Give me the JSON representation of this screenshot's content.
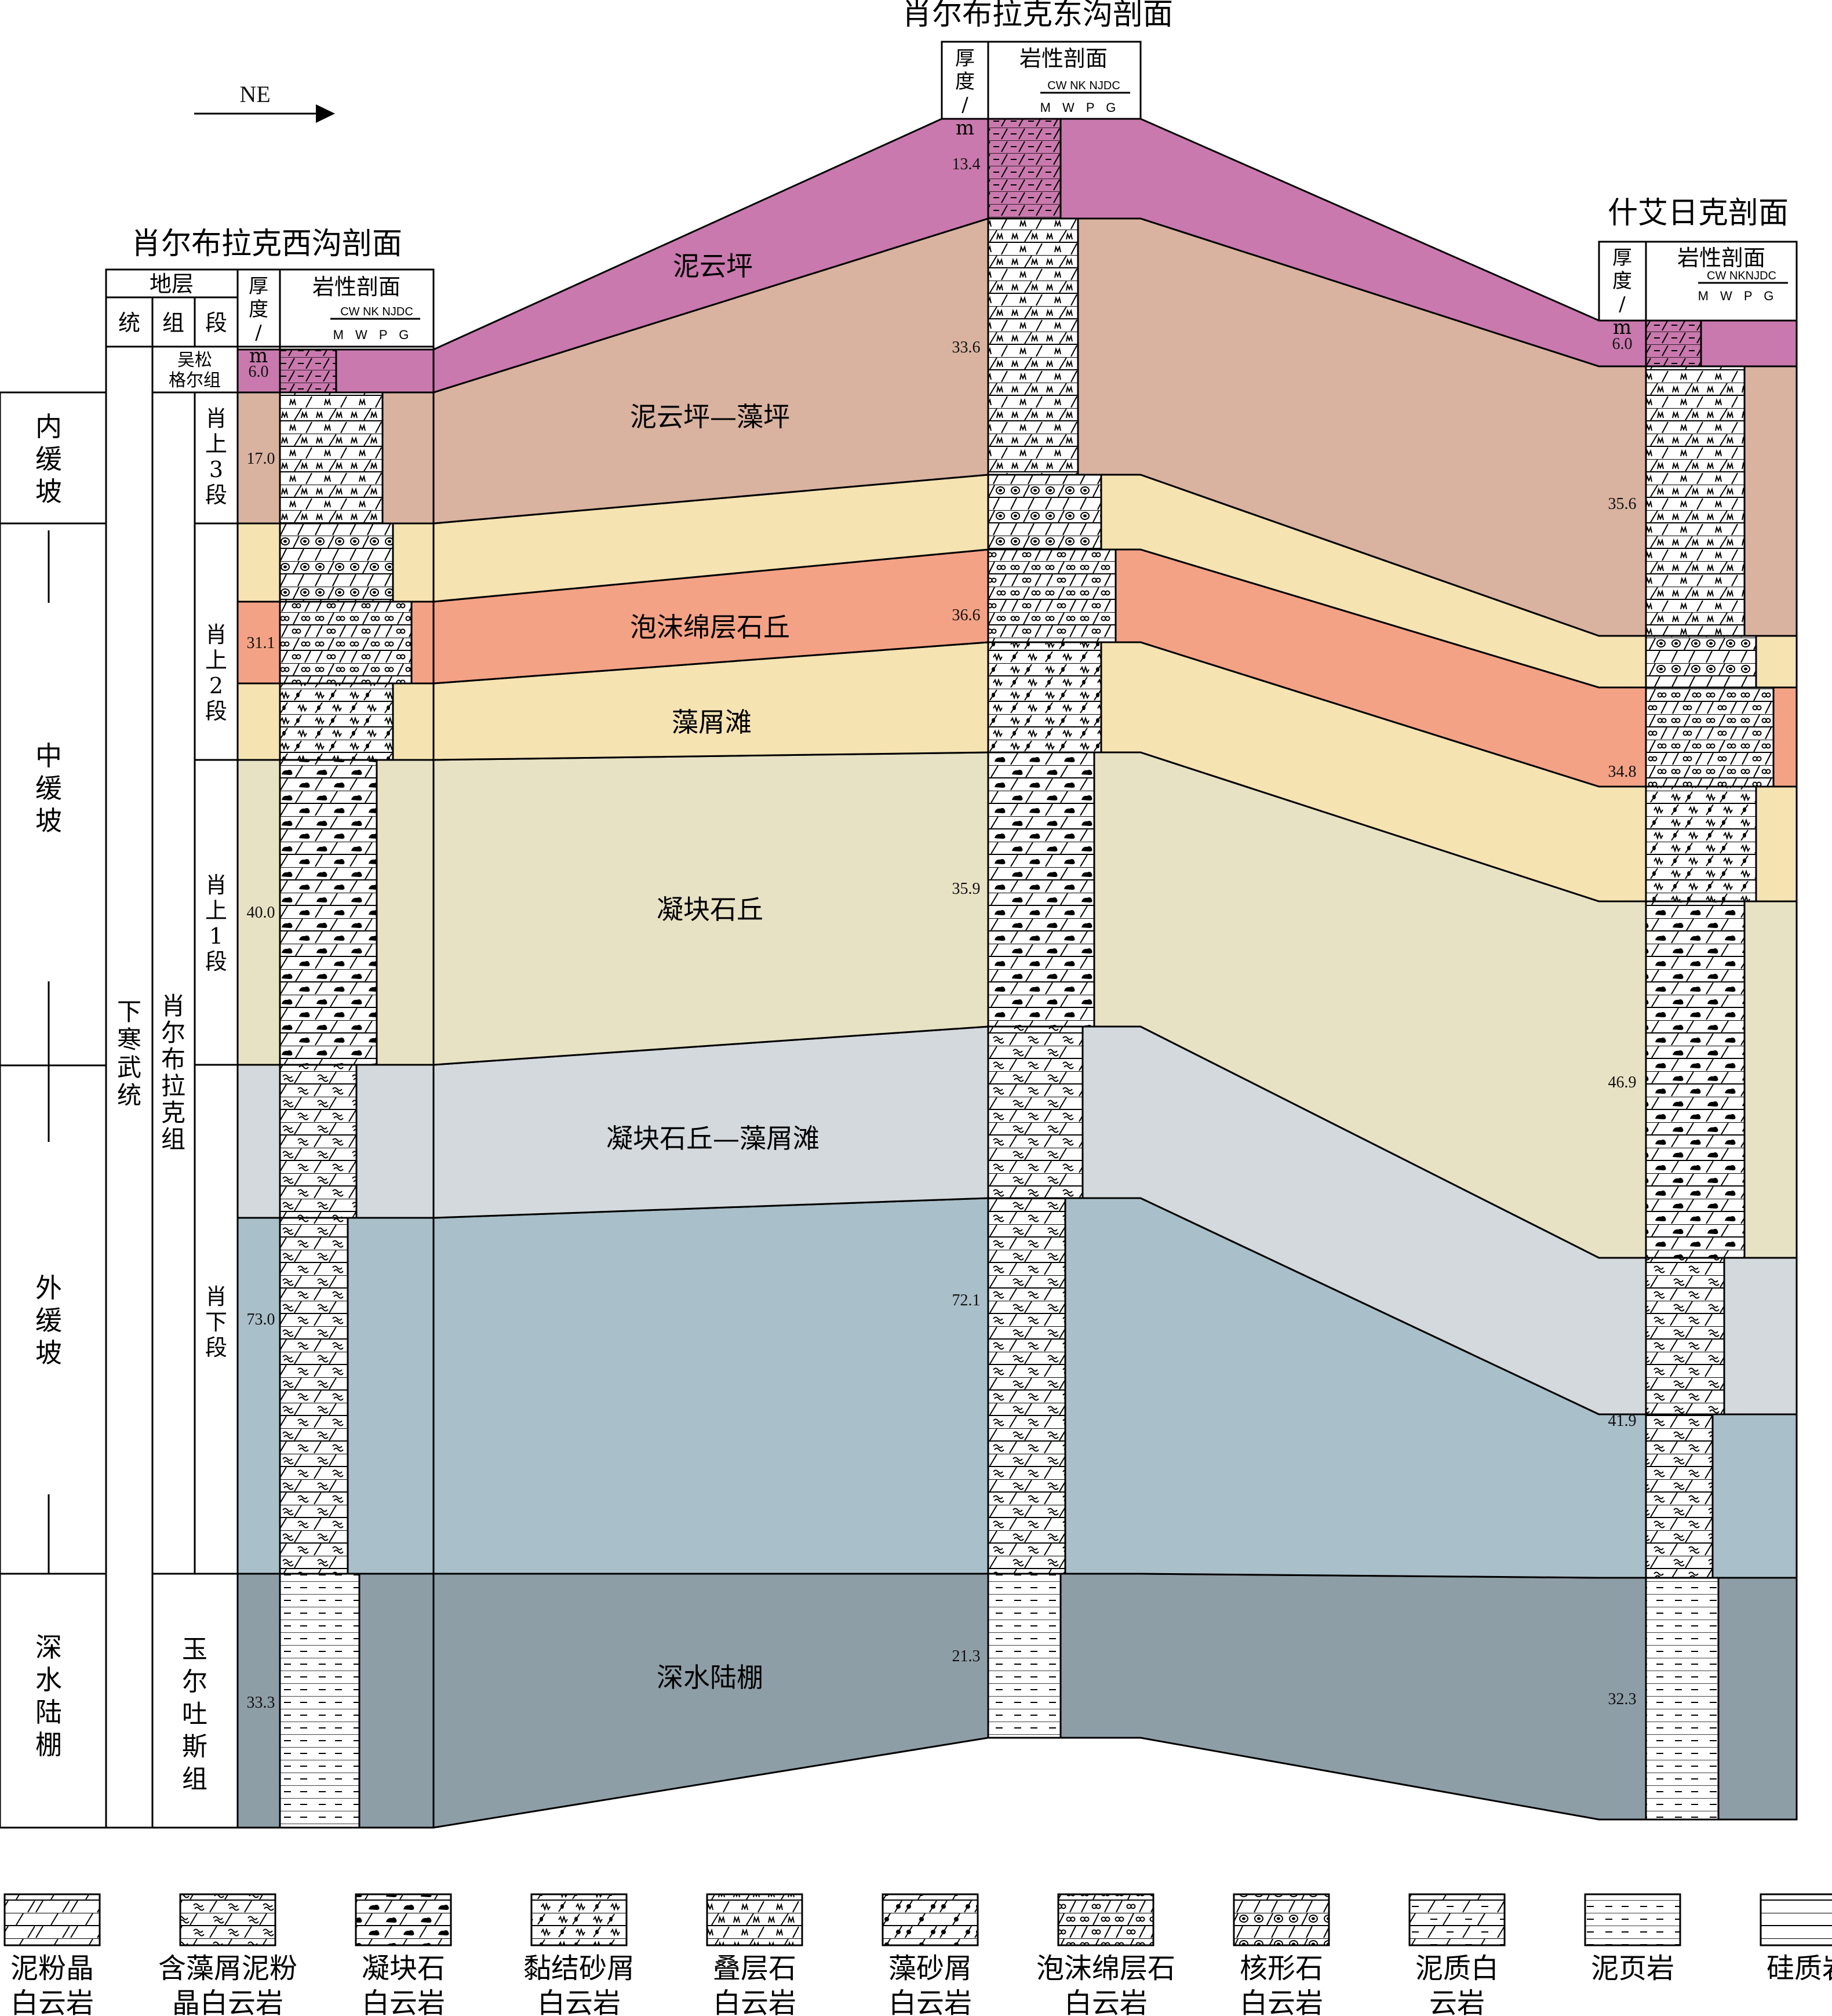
{
  "direction_label": "NE",
  "sections": {
    "west": {
      "title": "肖尔布拉克西沟剖面",
      "header_strata": "地层",
      "header_series": "统",
      "header_group": "组",
      "header_member": "段",
      "header_thickness": "厚度/m",
      "header_lith": "岩性剖面",
      "grain_top": "CW NK NJDC",
      "grain_bottom": "M W P G"
    },
    "east": {
      "title": "肖尔布拉克东沟剖面",
      "header_thickness": "厚度/m",
      "header_lith": "岩性剖面",
      "grain_top": "CW NK NJDC",
      "grain_bottom": "M W P G"
    },
    "shi": {
      "title": "什艾日克剖面",
      "header_thickness": "厚度/m",
      "header_lith": "岩性剖面",
      "grain_top": "CW NKNJDC",
      "grain_bottom": "M W P G"
    }
  },
  "ramp_zones": [
    "内缓坡",
    "中缓坡",
    "外缓坡",
    "深水陆棚"
  ],
  "strata": {
    "series": "下寒武统",
    "wusong": "吴松格尔组",
    "xiao_group": "肖尔布拉克组",
    "yuer_group": "玉尔吐斯组",
    "members": [
      "肖上3段",
      "肖上2段",
      "肖上1段",
      "肖下段"
    ]
  },
  "thickness": {
    "west": [
      "6.0",
      "17.0",
      "31.1",
      "40.0",
      "73.0",
      "33.3"
    ],
    "east": [
      "13.4",
      "33.6",
      "36.6",
      "35.9",
      "72.1",
      "21.3"
    ],
    "shi": [
      "6.0",
      "35.6",
      "34.8",
      "46.9",
      "41.9",
      "32.3"
    ]
  },
  "facies": {
    "niyunping": "泥云坪",
    "niyunping_zaoping": "泥云坪—藻坪",
    "paomo": "泡沫绵层石丘",
    "zaoxietan": "藻屑滩",
    "ningkuai": "凝块石丘",
    "ningkuai_zaoxie": "凝块石丘—藻屑滩",
    "shenshui": "深水陆棚"
  },
  "facies_colors": {
    "niyunping": "#c979ad",
    "niyunping_zaoping": "#d9b3a0",
    "tan": "#f6e3b2",
    "paomo": "#f4a285",
    "ningkuai": "#e8e2c4",
    "ningkuai_zaoxie": "#d3d9dc",
    "outer": "#a9bfc9",
    "shenshui": "#8e9ea7"
  },
  "legend": [
    {
      "line1": "泥粉晶",
      "line2": "白云岩",
      "icon": "dolomite-icon"
    },
    {
      "line1": "含藻屑泥粉",
      "line2": "晶白云岩",
      "icon": "algal-debris-icon"
    },
    {
      "line1": "凝块石",
      "line2": "白云岩",
      "icon": "thrombolite-icon"
    },
    {
      "line1": "黏结砂屑",
      "line2": "白云岩",
      "icon": "bound-grain-icon"
    },
    {
      "line1": "叠层石",
      "line2": "白云岩",
      "icon": "stromatolite-icon"
    },
    {
      "line1": "藻砂屑",
      "line2": "白云岩",
      "icon": "algal-sand-icon"
    },
    {
      "line1": "泡沫绵层石",
      "line2": "白云岩",
      "icon": "foam-icon"
    },
    {
      "line1": "核形石",
      "line2": "白云岩",
      "icon": "oncolite-icon"
    },
    {
      "line1": "泥质白",
      "line2": "云岩",
      "icon": "argillaceous-icon"
    },
    {
      "line1": "泥页岩",
      "line2": "",
      "icon": "shale-icon"
    },
    {
      "line1": "硅质岩",
      "line2": "",
      "icon": "chert-icon"
    }
  ]
}
